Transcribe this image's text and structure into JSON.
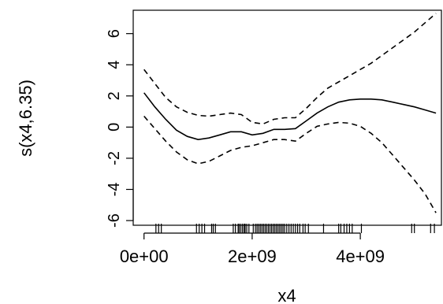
{
  "chart_data": {
    "type": "line",
    "title": "",
    "xlabel": "x4",
    "ylabel": "s(x4,6.35)",
    "xlim": [
      -200000000.0,
      5500000000.0
    ],
    "ylim": [
      -6.3,
      7.5
    ],
    "x_ticks": [
      {
        "value": 0,
        "label": "0e+00"
      },
      {
        "value": 2000000000,
        "label": "2e+09"
      },
      {
        "value": 4000000000,
        "label": "4e+09"
      }
    ],
    "y_ticks": [
      {
        "value": -6,
        "label": "-6"
      },
      {
        "value": -4,
        "label": "-4"
      },
      {
        "value": -2,
        "label": "-2"
      },
      {
        "value": 0,
        "label": "0"
      },
      {
        "value": 2,
        "label": "2"
      },
      {
        "value": 4,
        "label": "4"
      },
      {
        "value": 6,
        "label": "6"
      }
    ],
    "series": [
      {
        "role": "estimate",
        "style": "solid",
        "x": [
          0,
          200000000,
          400000000,
          600000000,
          800000000,
          1000000000,
          1200000000,
          1400000000,
          1600000000,
          1800000000,
          2000000000,
          2200000000,
          2400000000,
          2600000000,
          2800000000,
          3000000000,
          3200000000,
          3400000000,
          3600000000,
          3800000000,
          4000000000,
          4200000000,
          4400000000,
          4600000000,
          4800000000,
          5000000000,
          5200000000,
          5400000000
        ],
        "y": [
          2.2,
          1.3,
          0.5,
          -0.2,
          -0.6,
          -0.8,
          -0.7,
          -0.5,
          -0.3,
          -0.3,
          -0.5,
          -0.4,
          -0.15,
          -0.15,
          -0.1,
          0.4,
          0.9,
          1.3,
          1.6,
          1.75,
          1.8,
          1.8,
          1.75,
          1.6,
          1.45,
          1.3,
          1.1,
          0.9
        ]
      },
      {
        "role": "upper-band",
        "style": "dashed",
        "x": [
          0,
          200000000,
          400000000,
          600000000,
          800000000,
          1000000000,
          1200000000,
          1400000000,
          1600000000,
          1800000000,
          2000000000,
          2200000000,
          2400000000,
          2600000000,
          2800000000,
          3000000000,
          3200000000,
          3400000000,
          3600000000,
          3800000000,
          4000000000,
          4200000000,
          4400000000,
          4600000000,
          4800000000,
          5000000000,
          5200000000,
          5400000000
        ],
        "y": [
          3.7,
          2.8,
          1.9,
          1.3,
          0.95,
          0.75,
          0.7,
          0.8,
          0.9,
          0.8,
          0.3,
          0.2,
          0.5,
          0.6,
          0.6,
          1.2,
          1.9,
          2.5,
          2.9,
          3.3,
          3.7,
          4.1,
          4.6,
          5.1,
          5.6,
          6.1,
          6.7,
          7.3
        ]
      },
      {
        "role": "lower-band",
        "style": "dashed",
        "x": [
          0,
          200000000,
          400000000,
          600000000,
          800000000,
          1000000000,
          1200000000,
          1400000000,
          1600000000,
          1800000000,
          2000000000,
          2200000000,
          2400000000,
          2600000000,
          2800000000,
          3000000000,
          3200000000,
          3400000000,
          3600000000,
          3800000000,
          4000000000,
          4200000000,
          4400000000,
          4600000000,
          4800000000,
          5000000000,
          5200000000,
          5400000000
        ],
        "y": [
          0.7,
          -0.1,
          -0.9,
          -1.6,
          -2.1,
          -2.35,
          -2.2,
          -1.85,
          -1.5,
          -1.3,
          -1.2,
          -1.0,
          -0.8,
          -0.8,
          -0.9,
          -0.4,
          0.05,
          0.2,
          0.3,
          0.25,
          0.05,
          -0.4,
          -1.0,
          -1.8,
          -2.6,
          -3.4,
          -4.3,
          -5.5
        ]
      }
    ],
    "rug": [
      220000000,
      270000000,
      320000000,
      970000000,
      1020000000,
      1070000000,
      1120000000,
      1250000000,
      1280000000,
      1320000000,
      1650000000,
      1690000000,
      1740000000,
      1760000000,
      1790000000,
      1820000000,
      1850000000,
      1870000000,
      1900000000,
      1940000000,
      2020000000,
      2060000000,
      2090000000,
      2120000000,
      2150000000,
      2180000000,
      2210000000,
      2240000000,
      2270000000,
      2300000000,
      2330000000,
      2360000000,
      2390000000,
      2420000000,
      2450000000,
      2480000000,
      2510000000,
      2540000000,
      2570000000,
      2600000000,
      2640000000,
      2680000000,
      2720000000,
      2760000000,
      2800000000,
      2840000000,
      2880000000,
      2940000000,
      2980000000,
      3040000000,
      3320000000,
      3600000000,
      3640000000,
      3700000000,
      3750000000,
      3800000000,
      3850000000,
      4020000000,
      4950000000,
      5000000000,
      5300000000,
      5370000000
    ],
    "grid": false,
    "legend": "none"
  }
}
